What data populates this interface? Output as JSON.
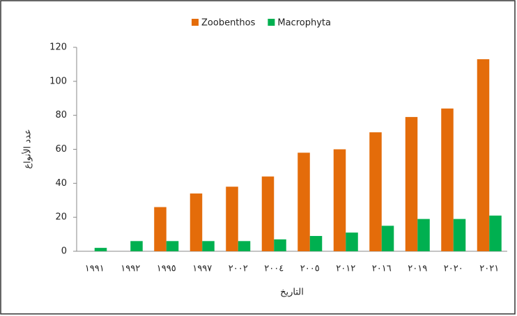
{
  "chart_data": {
    "type": "bar",
    "categories": [
      "١٩٩١",
      "١٩٩٢",
      "١٩٩٥",
      "١٩٩٧",
      "٢٠٠٢",
      "٢٠٠٤",
      "٢٠٠٥",
      "٢٠١٢",
      "٢٠١٦",
      "٢٠١٩",
      "٢٠٢٠",
      "٢٠٢١"
    ],
    "series": [
      {
        "name": "Zoobenthos",
        "color": "#e46c0a",
        "values": [
          0,
          0,
          26,
          34,
          38,
          44,
          58,
          60,
          70,
          79,
          84,
          113
        ]
      },
      {
        "name": "Macrophyta",
        "color": "#00b050",
        "values": [
          2,
          6,
          6,
          6,
          6,
          7,
          9,
          11,
          15,
          19,
          19,
          21
        ]
      }
    ],
    "ylabel": "عدد الأنواع",
    "xlabel": "التاريخ",
    "ylim": [
      0,
      120
    ],
    "yticks": [
      0,
      20,
      40,
      60,
      80,
      100,
      120
    ],
    "grid": false,
    "legend": "top"
  }
}
